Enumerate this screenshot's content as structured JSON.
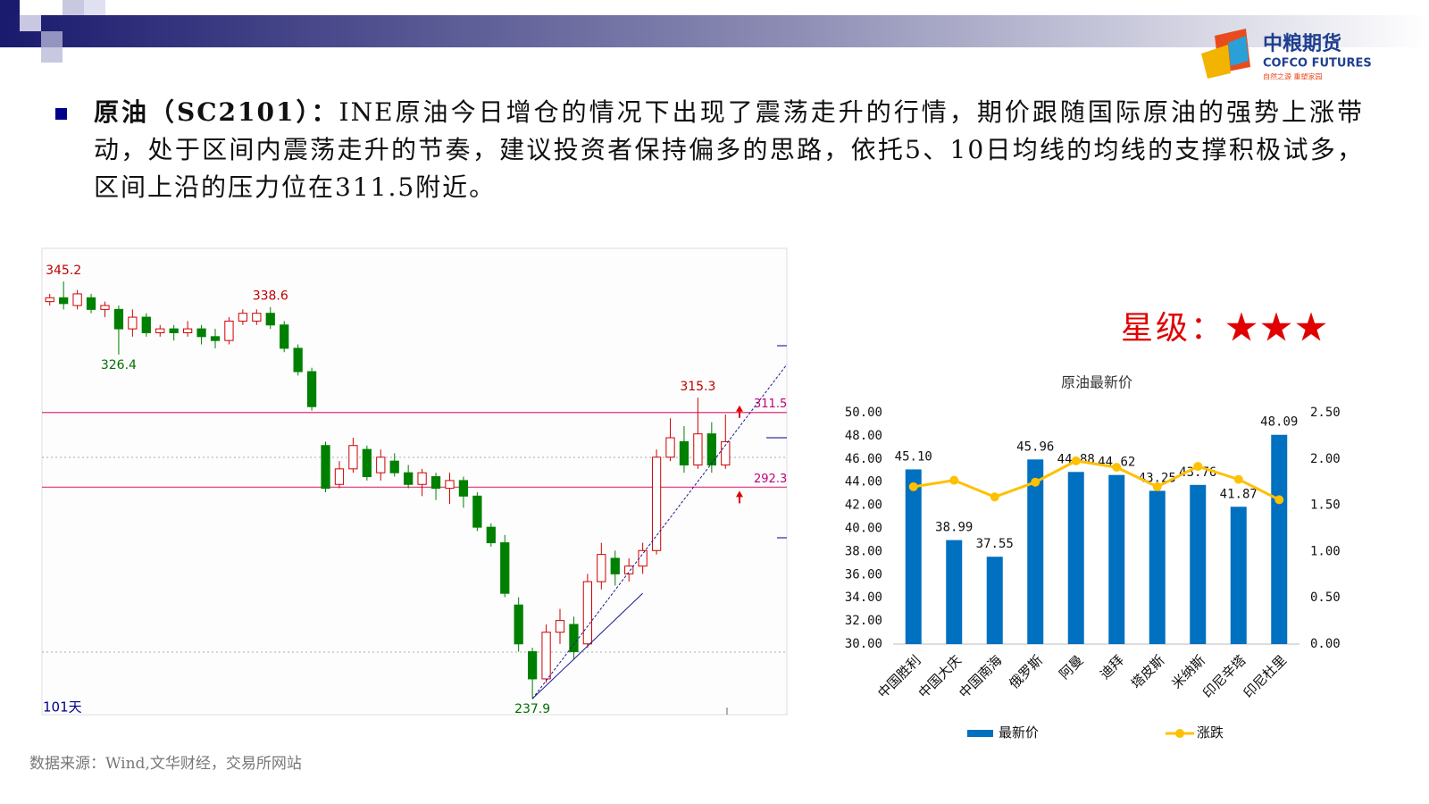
{
  "header": {
    "logo_cn": "中粮期货",
    "logo_en": "COFCO FUTURES",
    "logo_slogan": "自然之源 重塑家园"
  },
  "bullet": {
    "label": "原油（SC2101）：",
    "text": "INE原油今日增仓的情况下出现了震荡走升的行情，期价跟随国际原油的强势上涨带动，处于区间内震荡走升的节奏，建议投资者保持偏多的思路，依托5、10日均线的均线的支撑积极试多，区间上沿的压力位在311.5附近。"
  },
  "rating": {
    "label": "星级：",
    "stars": "★★★"
  },
  "source": "数据来源：Wind,文华财经，交易所网站",
  "chart_data": [
    {
      "type": "candlestick",
      "open": [
        340,
        341,
        339,
        341,
        338,
        338,
        333,
        336,
        332,
        333,
        332,
        333,
        331,
        330,
        335,
        335,
        337,
        334,
        328,
        322,
        303,
        293,
        297,
        302,
        296,
        299,
        296,
        293,
        295,
        292,
        294,
        290,
        282,
        278,
        262,
        250,
        243,
        255,
        257,
        252,
        268,
        274,
        270,
        272,
        276,
        300,
        304,
        298,
        306,
        298
      ],
      "close": [
        341,
        339.5,
        342,
        338,
        339,
        333,
        336,
        332,
        333,
        332,
        333,
        331,
        330,
        335,
        337,
        337,
        334,
        328,
        322,
        313,
        292,
        297,
        303,
        295,
        300,
        296,
        293,
        296,
        292,
        294,
        290,
        282,
        278,
        265,
        252,
        243,
        255,
        258,
        250,
        268,
        275,
        270,
        272,
        276,
        300,
        305,
        298,
        306,
        298,
        304
      ],
      "high": [
        342,
        345.2,
        343,
        342,
        340,
        339,
        338,
        337,
        334,
        334,
        335,
        334,
        333,
        336,
        338,
        338,
        338.6,
        335,
        329,
        323,
        304,
        299,
        305,
        303,
        302,
        301,
        298,
        297,
        296,
        296,
        295,
        291,
        283,
        280,
        264,
        251,
        257,
        261,
        259,
        270,
        278,
        276,
        274,
        278,
        302,
        310,
        308,
        315.3,
        309,
        311
      ],
      "low": [
        339,
        338,
        338,
        337,
        336,
        326.4,
        331,
        331,
        331,
        330,
        331,
        329,
        328,
        329,
        334,
        334,
        333,
        327,
        321,
        312,
        291,
        292,
        296,
        294,
        294,
        295,
        292,
        290,
        289,
        288,
        287,
        281,
        277,
        264,
        250,
        237.9,
        242,
        252,
        248,
        251,
        266,
        267,
        268,
        270,
        275,
        299,
        296,
        297,
        296,
        297
      ],
      "ylim": [
        233.8,
        353.7
      ],
      "labeled_highs": [
        345.2,
        338.6,
        315.3
      ],
      "labeled_lows": [
        326.4,
        237.9
      ],
      "levels": [
        311.5,
        292.3
      ],
      "period_label": "101天"
    },
    {
      "type": "bar-line",
      "title": "原油最新价",
      "categories": [
        "中国胜利",
        "中国大庆",
        "中国南海",
        "俄罗斯",
        "阿曼",
        "迪拜",
        "塔皮斯",
        "米纳斯",
        "印尼辛塔",
        "印尼杜里"
      ],
      "series": [
        {
          "name": "最新价",
          "type": "bar",
          "color": "#0070c0",
          "values": [
            45.1,
            38.99,
            37.55,
            45.96,
            44.88,
            44.62,
            43.25,
            43.76,
            41.87,
            48.09
          ],
          "value_labels": [
            "45.10",
            "38.99",
            "37.55",
            "45.96",
            "44.88",
            "44.62",
            "43.25",
            "43.76",
            "41.87",
            "48.09"
          ]
        },
        {
          "name": "涨跌",
          "type": "line",
          "axis": "y2",
          "color": "#ffc000",
          "values": [
            1.7,
            1.77,
            1.59,
            1.75,
            1.98,
            1.91,
            1.7,
            1.92,
            1.78,
            1.56
          ]
        }
      ],
      "ylim": [
        30,
        50
      ],
      "yticks": [
        {
          "value": 30,
          "label": "30.00"
        },
        {
          "value": 32,
          "label": "32.00"
        },
        {
          "value": 34,
          "label": "34.00"
        },
        {
          "value": 36,
          "label": "36.00"
        },
        {
          "value": 38,
          "label": "38.00"
        },
        {
          "value": 40,
          "label": "40.00"
        },
        {
          "value": 42,
          "label": "42.00"
        },
        {
          "value": 44,
          "label": "44.00"
        },
        {
          "value": 46,
          "label": "46.00"
        },
        {
          "value": 48,
          "label": "48.00"
        },
        {
          "value": 50,
          "label": "50.00"
        }
      ],
      "y2lim": [
        0,
        2.5
      ],
      "y2ticks": [
        {
          "value": 0,
          "label": "0.00"
        },
        {
          "value": 0.5,
          "label": "0.50"
        },
        {
          "value": 1,
          "label": "1.00"
        },
        {
          "value": 1.5,
          "label": "1.50"
        },
        {
          "value": 2,
          "label": "2.00"
        },
        {
          "value": 2.5,
          "label": "2.50"
        }
      ]
    }
  ]
}
